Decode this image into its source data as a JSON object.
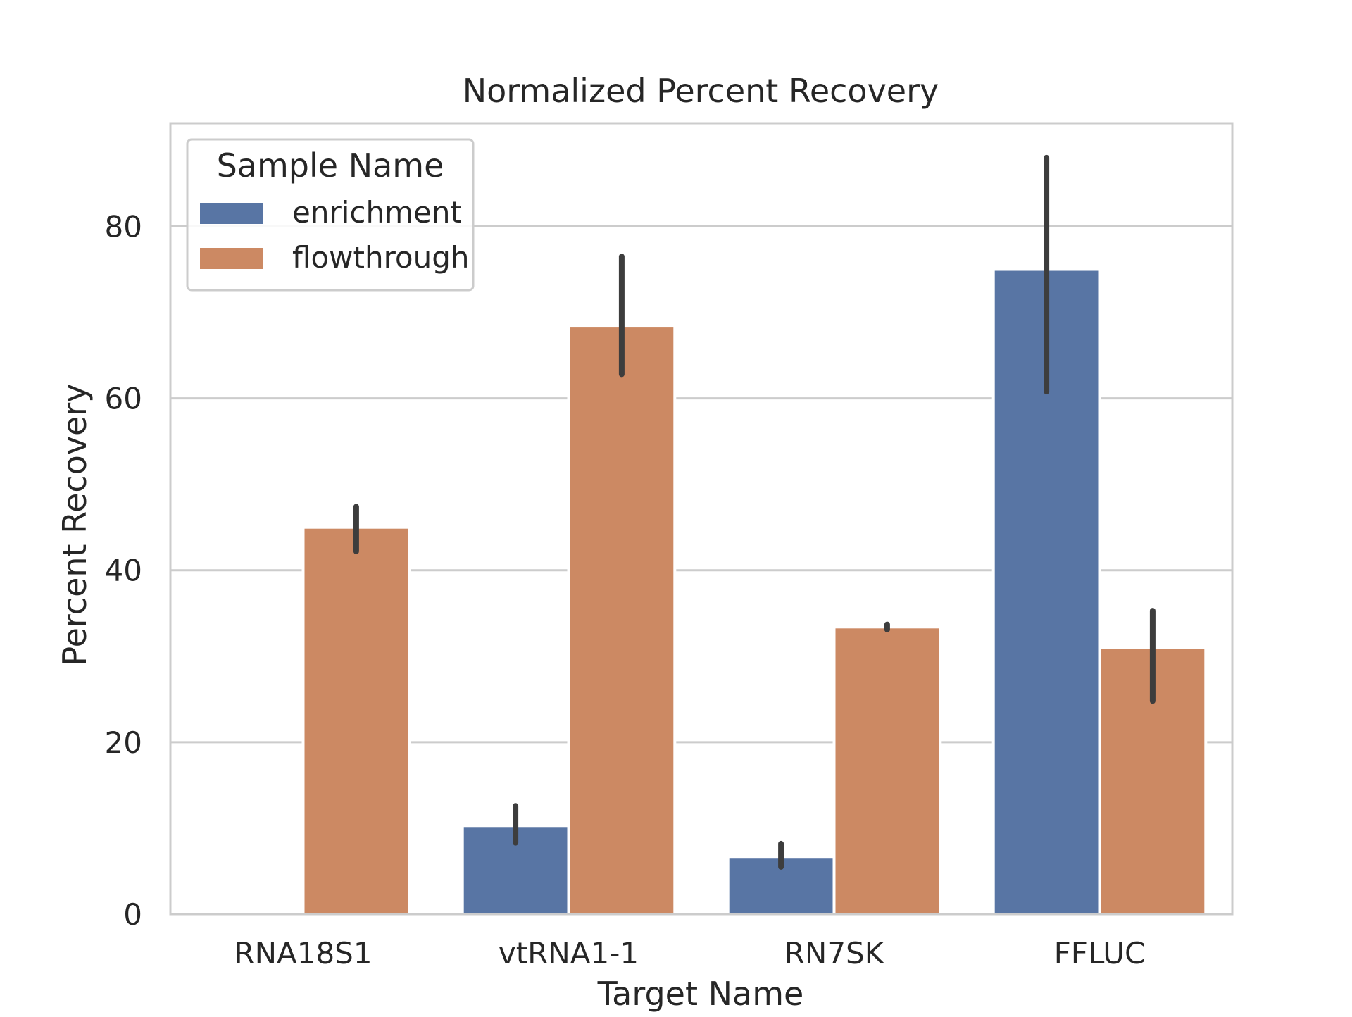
{
  "chart_data": {
    "type": "bar",
    "title": "Normalized Percent Recovery",
    "xlabel": "Target Name",
    "ylabel": "Percent Recovery",
    "categories": [
      "RNA18S1",
      "vtRNA1-1",
      "RN7SK",
      "FFLUC"
    ],
    "ylim": [
      0,
      92
    ],
    "yticks": [
      0,
      20,
      40,
      60,
      80
    ],
    "grid": true,
    "legend": {
      "title": "Sample Name",
      "placement": "top-left"
    },
    "series": [
      {
        "name": "enrichment",
        "color": "#5875a4",
        "values": [
          0,
          10.3,
          6.7,
          75.0
        ],
        "error_low": [
          0,
          8.3,
          5.5,
          60.8
        ],
        "error_high": [
          0,
          12.6,
          8.2,
          88.0
        ]
      },
      {
        "name": "flowthrough",
        "color": "#cc8963",
        "values": [
          45.0,
          68.4,
          33.4,
          31.0
        ],
        "error_low": [
          42.2,
          62.8,
          33.1,
          24.8
        ],
        "error_high": [
          47.4,
          76.5,
          33.7,
          35.3
        ]
      }
    ],
    "error_bar_color": "#3d3d3d"
  }
}
